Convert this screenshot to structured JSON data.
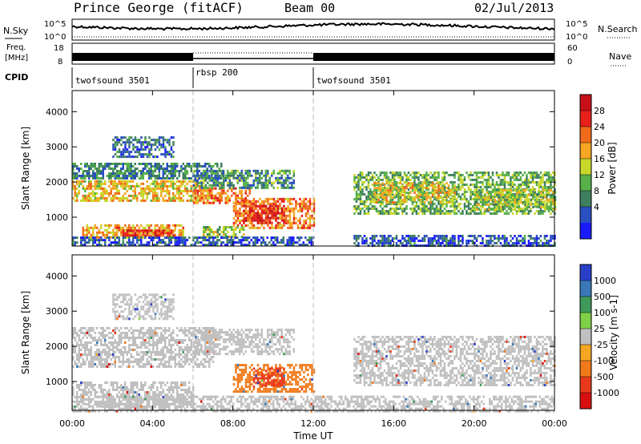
{
  "header": {
    "station": "Prince George (fitACF)",
    "beam": "Beam 00",
    "date": "02/Jul/2013"
  },
  "top_panels": {
    "nsky_label": "N.Sky",
    "nsearch_label": "N.Search",
    "noise_ticks": [
      "10^5",
      "10^0"
    ],
    "freq_label_line1": "Freq.",
    "freq_label_line2": "[MHz]",
    "freq_ticks": [
      "18",
      "8"
    ],
    "nave_label": "Nave",
    "nave_ticks": [
      "60",
      "0"
    ],
    "cpid_label": "CPID",
    "cpid_segments": [
      {
        "label": "twofsound 3501",
        "start_h": 0,
        "end_h": 6
      },
      {
        "label": "rbsp 200",
        "start_h": 6,
        "end_h": 12
      },
      {
        "label": "twofsound 3501",
        "start_h": 12,
        "end_h": 24
      }
    ]
  },
  "colorbars": {
    "power": {
      "title": "Power [dB]",
      "ticks": [
        "4",
        "8",
        "12",
        "16",
        "20",
        "24",
        "28"
      ],
      "colors": [
        "#1a1aff",
        "#2a4fc0",
        "#3f7f5f",
        "#57b04a",
        "#c8d82a",
        "#f5a623",
        "#f06a1a",
        "#e8201a",
        "#c8101a"
      ]
    },
    "velocity": {
      "title": "Velocity [m s-1]",
      "ticks": [
        "1000",
        "500",
        "100",
        "25",
        "-25",
        "-100",
        "-500",
        "-1000"
      ],
      "colors": [
        "#2a3fc8",
        "#3a78b8",
        "#3f9a5a",
        "#7fd048",
        "#c0c0c0",
        "#f5a623",
        "#f07a1a",
        "#e83a1a",
        "#d80f0f"
      ]
    }
  },
  "chart_data": [
    {
      "type": "heatmap",
      "title": "",
      "xlabel": "Time UT",
      "ylabel": "Slant Range [km]",
      "xlim_hours": [
        0,
        24
      ],
      "ylim_km": [
        180,
        4600
      ],
      "x_ticks": [
        "00:00",
        "04:00",
        "08:00",
        "12:00",
        "16:00",
        "20:00",
        "00:00"
      ],
      "y_ticks": [
        1000,
        2000,
        3000,
        4000
      ],
      "colorbar": "Power [dB]",
      "regions": [
        {
          "t0": 0.0,
          "t1": 6.5,
          "r0": 1500,
          "r1": 2050,
          "level": 18
        },
        {
          "t0": 6.0,
          "t1": 8.8,
          "r0": 1400,
          "r1": 1850,
          "level": 22
        },
        {
          "t0": 6.0,
          "t1": 11.0,
          "r0": 1850,
          "r1": 2350,
          "level": 10
        },
        {
          "t0": 0.0,
          "t1": 7.5,
          "r0": 2100,
          "r1": 2550,
          "level": 9
        },
        {
          "t0": 8.0,
          "t1": 12.0,
          "r0": 700,
          "r1": 1550,
          "level": 22
        },
        {
          "t0": 8.5,
          "t1": 10.5,
          "r0": 850,
          "r1": 1350,
          "level": 28
        },
        {
          "t0": 0.5,
          "t1": 5.5,
          "r0": 400,
          "r1": 800,
          "level": 20
        },
        {
          "t0": 2.5,
          "t1": 5.0,
          "r0": 450,
          "r1": 650,
          "level": 27
        },
        {
          "t0": 6.5,
          "t1": 8.5,
          "r0": 450,
          "r1": 750,
          "level": 14
        },
        {
          "t0": 14.0,
          "t1": 24.0,
          "r0": 1100,
          "r1": 2300,
          "level": 12
        },
        {
          "t0": 15.0,
          "t1": 19.0,
          "r0": 1400,
          "r1": 2000,
          "level": 17
        },
        {
          "t0": 20.0,
          "t1": 24.0,
          "r0": 1200,
          "r1": 1800,
          "level": 14
        },
        {
          "t0": 0.0,
          "t1": 12.0,
          "r0": 180,
          "r1": 450,
          "level": 6
        },
        {
          "t0": 14.0,
          "t1": 24.0,
          "r0": 180,
          "r1": 500,
          "level": 6
        },
        {
          "t0": 2.0,
          "t1": 5.0,
          "r0": 2700,
          "r1": 3300,
          "level": 7
        }
      ]
    },
    {
      "type": "heatmap",
      "title": "",
      "xlabel": "Time UT",
      "ylabel": "Slant Range [km]",
      "xlim_hours": [
        0,
        24
      ],
      "ylim_km": [
        180,
        4600
      ],
      "x_ticks": [
        "00:00",
        "04:00",
        "08:00",
        "12:00",
        "16:00",
        "20:00",
        "00:00"
      ],
      "y_ticks": [
        1000,
        2000,
        3000,
        4000
      ],
      "colorbar": "Velocity [m s-1]",
      "regions": [
        {
          "t0": 0.0,
          "t1": 7.0,
          "r0": 1400,
          "r1": 2550,
          "vel": 0
        },
        {
          "t0": 6.0,
          "t1": 11.0,
          "r0": 1800,
          "r1": 2500,
          "vel": 0
        },
        {
          "t0": 8.0,
          "t1": 12.0,
          "r0": 700,
          "r1": 1500,
          "vel": -300
        },
        {
          "t0": 9.0,
          "t1": 10.5,
          "r0": 900,
          "r1": 1400,
          "vel": -600
        },
        {
          "t0": 0.0,
          "t1": 6.0,
          "r0": 300,
          "r1": 1000,
          "vel": 0
        },
        {
          "t0": 14.0,
          "t1": 24.0,
          "r0": 900,
          "r1": 2300,
          "vel": 0
        },
        {
          "t0": 0.0,
          "t1": 24.0,
          "r0": 180,
          "r1": 600,
          "vel": 0
        },
        {
          "t0": 2.0,
          "t1": 5.0,
          "r0": 2800,
          "r1": 3500,
          "vel": 0
        }
      ]
    }
  ]
}
